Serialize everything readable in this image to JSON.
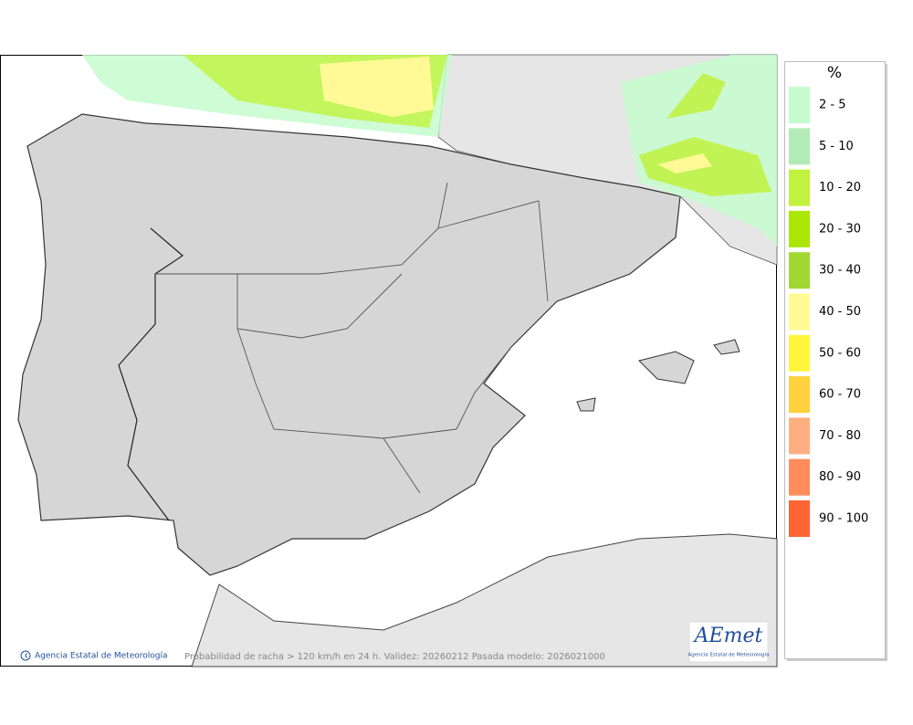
{
  "legend": {
    "title": "%",
    "items": [
      {
        "label": "2 - 5",
        "color": "#c6fbce"
      },
      {
        "label": "5 - 10",
        "color": "#b3ebb8"
      },
      {
        "label": "10 - 20",
        "color": "#c0f23e"
      },
      {
        "label": "20 - 30",
        "color": "#aae600"
      },
      {
        "label": "30 - 40",
        "color": "#a0d832"
      },
      {
        "label": "40 - 50",
        "color": "#fffa96"
      },
      {
        "label": "50 - 60",
        "color": "#fff53c"
      },
      {
        "label": "60 - 70",
        "color": "#ffd13c"
      },
      {
        "label": "70 - 80",
        "color": "#ffaf82"
      },
      {
        "label": "80 - 90",
        "color": "#ff8c5a"
      },
      {
        "label": "90 - 100",
        "color": "#ff6432"
      }
    ]
  },
  "footer": {
    "credit": "Agencia Estatal de Meteorología",
    "caption": "Probabilidad de racha > 120 km/h en 24 h. Validez: 20260212 Pasada modelo: 2026021000"
  },
  "logo": {
    "name": "AEmet",
    "subtitle": "Agencia Estatal de Meteorología"
  }
}
